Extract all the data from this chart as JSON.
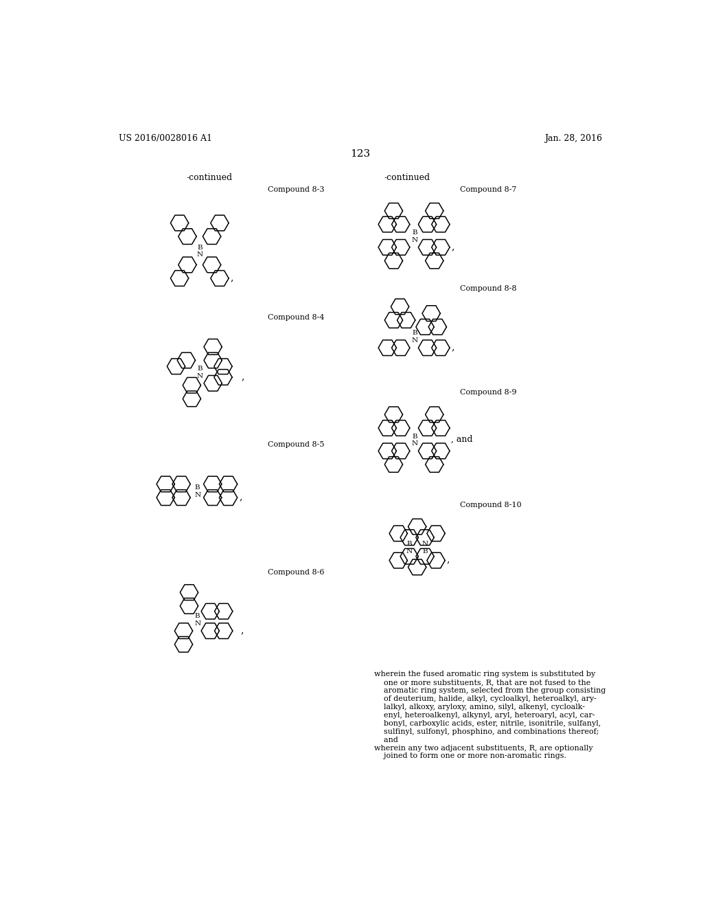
{
  "background_color": "#ffffff",
  "page_header_left": "US 2016/0028016 A1",
  "page_header_right": "Jan. 28, 2016",
  "page_number": "123",
  "left_continued": "-continued",
  "right_continued": "-continued",
  "footer_lines": [
    "wherein the fused aromatic ring system is substituted by",
    "    one or more substituents, R, that are not fused to the",
    "    aromatic ring system, selected from the group consisting",
    "    of deuterium, halide, alkyl, cycloalkyl, heteroalkyl, ary-",
    "    lalkyl, alkoxy, aryloxy, amino, silyl, alkenyl, cycloalk-",
    "    enyl, heteroalkenyl, alkynyl, aryl, heteroaryl, acyl, car-",
    "    bonyl, carboxylic acids, ester, nitrile, isonitrile, sulfanyl,",
    "    sulfinyl, sulfonyl, phosphino, and combinations thereof;",
    "    and",
    "wherein any two adjacent substituents, R, are optionally",
    "    joined to form one or more non-aromatic rings."
  ]
}
